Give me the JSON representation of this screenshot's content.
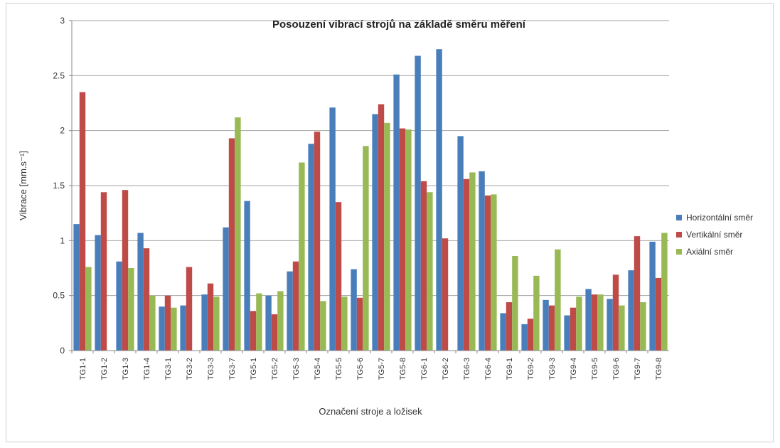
{
  "chart_data": {
    "type": "bar",
    "title": "Posouzení vibrací strojů na základě směru měření",
    "xlabel": "Označení stroje a ložisek",
    "ylabel": "Vibrace [mm.s⁻¹]",
    "ylim": [
      0,
      3
    ],
    "yticks": [
      "0",
      "0.5",
      "1",
      "1.5",
      "2",
      "2.5",
      "3"
    ],
    "grid": true,
    "legend_position": "right",
    "categories": [
      "TG1-1",
      "TG1-2",
      "TG1-3",
      "TG1-4",
      "TG3-1",
      "TG3-2",
      "TG3-3",
      "TG3-7",
      "TG5-1",
      "TG5-2",
      "TG5-3",
      "TG5-4",
      "TG5-5",
      "TG5-6",
      "TG5-7",
      "TG5-8",
      "TG6-1",
      "TG6-2",
      "TG6-3",
      "TG6-4",
      "TG9-1",
      "TG9-2",
      "TG9-3",
      "TG9-4",
      "TG9-5",
      "TG9-6",
      "TG9-7",
      "TG9-8"
    ],
    "series": [
      {
        "name": "Horizontální směr",
        "color": "#4a7ebb",
        "values": [
          1.15,
          1.05,
          0.81,
          1.07,
          0.4,
          0.41,
          0.51,
          1.12,
          1.36,
          0.5,
          0.72,
          1.88,
          2.21,
          0.74,
          2.15,
          2.51,
          2.68,
          2.74,
          1.95,
          1.63,
          0.34,
          0.24,
          0.46,
          0.32,
          0.56,
          0.47,
          0.73,
          0.99
        ]
      },
      {
        "name": "Vertikální směr",
        "color": "#be4b48",
        "values": [
          2.35,
          1.44,
          1.46,
          0.93,
          0.5,
          0.76,
          0.61,
          1.93,
          0.36,
          0.33,
          0.81,
          1.99,
          1.35,
          0.48,
          2.24,
          2.02,
          1.54,
          1.02,
          1.56,
          1.41,
          0.44,
          0.29,
          0.41,
          0.39,
          0.51,
          0.69,
          1.04,
          0.66
        ]
      },
      {
        "name": "Axiální směr",
        "color": "#98b954",
        "values": [
          0.76,
          0,
          0.75,
          0.5,
          0.39,
          0,
          0.49,
          2.12,
          0.52,
          0.54,
          1.71,
          0.45,
          0.49,
          1.86,
          2.07,
          2.01,
          1.44,
          0,
          1.62,
          1.42,
          0.86,
          0.68,
          0.92,
          0.49,
          0.51,
          0.41,
          0.44,
          1.07
        ]
      }
    ]
  }
}
